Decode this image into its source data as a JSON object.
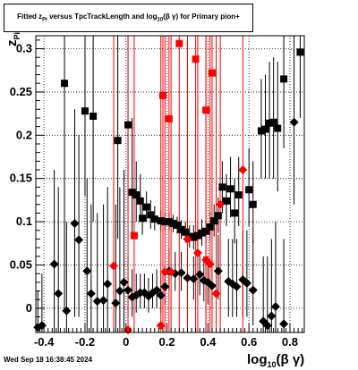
{
  "title": {
    "prefix": "Fitted  z",
    "sub1": "Pi",
    "mid": "  versus TpcTrackLength and log",
    "sub2": "10",
    "suffix": "(β γ) for Primary pion+"
  },
  "footer": "Wed Sep 18 16:38:45 2024",
  "xlabel": {
    "main": "log",
    "sub": "10",
    "rest": "(β γ)"
  },
  "ylabel": {
    "main": "z",
    "sub": "Pi"
  },
  "chart_data": {
    "type": "scatter",
    "xlim": [
      -0.44,
      0.87
    ],
    "ylim": [
      -0.028,
      0.315
    ],
    "grid": true,
    "xticks": [
      -0.4,
      -0.2,
      0,
      0.2,
      0.4,
      0.6,
      0.8
    ],
    "xtick_labels": [
      "-0.4",
      "-0.2",
      "0",
      "0.2",
      "0.4",
      "0.6",
      "0.8"
    ],
    "yticks": [
      0,
      0.05,
      0.1,
      0.15,
      0.2,
      0.25,
      0.3
    ],
    "ytick_labels": [
      "0",
      "0.05",
      "0.1",
      "0.15",
      "0.2",
      "0.25",
      "0.3"
    ],
    "series": [
      {
        "marker": "square",
        "color": "#000000",
        "points": [
          {
            "x": -0.3,
            "y": 0.26,
            "lo": 0.0,
            "hi": 0.315
          },
          {
            "x": -0.2,
            "y": 0.228,
            "lo": 0.13,
            "hi": 0.315
          },
          {
            "x": -0.16,
            "y": 0.222,
            "lo": 0.1,
            "hi": 0.315
          },
          {
            "x": -0.04,
            "y": 0.194,
            "lo": 0.08,
            "hi": 0.315
          },
          {
            "x": 0.01,
            "y": 0.212,
            "lo": 0.11,
            "hi": 0.315
          },
          {
            "x": 0.03,
            "y": 0.134,
            "lo": 0.08,
            "hi": 0.22
          },
          {
            "x": 0.05,
            "y": 0.131,
            "lo": 0.1,
            "hi": 0.17
          },
          {
            "x": 0.07,
            "y": 0.124,
            "lo": 0.1,
            "hi": 0.155
          },
          {
            "x": 0.08,
            "y": 0.104,
            "lo": 0.085,
            "hi": 0.125
          },
          {
            "x": 0.1,
            "y": 0.117,
            "lo": 0.1,
            "hi": 0.135
          },
          {
            "x": 0.12,
            "y": 0.108,
            "lo": 0.092,
            "hi": 0.125
          },
          {
            "x": 0.14,
            "y": 0.103,
            "lo": 0.09,
            "hi": 0.118
          },
          {
            "x": 0.17,
            "y": 0.101,
            "lo": 0.089,
            "hi": 0.113
          },
          {
            "x": 0.19,
            "y": 0.1,
            "lo": 0.09,
            "hi": 0.111
          },
          {
            "x": 0.21,
            "y": 0.1,
            "lo": 0.09,
            "hi": 0.11
          },
          {
            "x": 0.23,
            "y": 0.098,
            "lo": 0.088,
            "hi": 0.108
          },
          {
            "x": 0.25,
            "y": 0.096,
            "lo": 0.086,
            "hi": 0.106
          },
          {
            "x": 0.27,
            "y": 0.091,
            "lo": 0.08,
            "hi": 0.102
          },
          {
            "x": 0.29,
            "y": 0.088,
            "lo": 0.076,
            "hi": 0.1
          },
          {
            "x": 0.31,
            "y": 0.083,
            "lo": 0.07,
            "hi": 0.096
          },
          {
            "x": 0.33,
            "y": 0.082,
            "lo": 0.068,
            "hi": 0.096
          },
          {
            "x": 0.35,
            "y": 0.084,
            "lo": 0.07,
            "hi": 0.099
          },
          {
            "x": 0.37,
            "y": 0.087,
            "lo": 0.072,
            "hi": 0.103
          },
          {
            "x": 0.39,
            "y": 0.089,
            "lo": 0.074,
            "hi": 0.106
          },
          {
            "x": 0.41,
            "y": 0.094,
            "lo": 0.078,
            "hi": 0.112
          },
          {
            "x": 0.43,
            "y": 0.101,
            "lo": 0.083,
            "hi": 0.12
          },
          {
            "x": 0.45,
            "y": 0.107,
            "lo": 0.087,
            "hi": 0.128
          },
          {
            "x": 0.47,
            "y": 0.14,
            "lo": 0.11,
            "hi": 0.17
          },
          {
            "x": 0.49,
            "y": 0.124,
            "lo": 0.095,
            "hi": 0.155
          },
          {
            "x": 0.51,
            "y": 0.138,
            "lo": 0.105,
            "hi": 0.175
          },
          {
            "x": 0.53,
            "y": 0.11,
            "lo": 0.075,
            "hi": 0.15
          },
          {
            "x": 0.55,
            "y": 0.131,
            "lo": 0.095,
            "hi": 0.175
          },
          {
            "x": 0.6,
            "y": 0.137,
            "lo": 0.095,
            "hi": 0.185
          },
          {
            "x": 0.62,
            "y": 0.12,
            "lo": 0.075,
            "hi": 0.17
          },
          {
            "x": 0.66,
            "y": 0.205,
            "lo": 0.15,
            "hi": 0.265
          },
          {
            "x": 0.68,
            "y": 0.207,
            "lo": 0.15,
            "hi": 0.27
          },
          {
            "x": 0.7,
            "y": 0.214,
            "lo": 0.15,
            "hi": 0.285
          },
          {
            "x": 0.72,
            "y": 0.215,
            "lo": 0.15,
            "hi": 0.29
          },
          {
            "x": 0.74,
            "y": 0.208,
            "lo": 0.135,
            "hi": 0.285
          },
          {
            "x": 0.77,
            "y": 0.265,
            "lo": 0.185,
            "hi": 0.315
          },
          {
            "x": 0.85,
            "y": 0.296,
            "lo": 0.22,
            "hi": 0.315
          }
        ]
      },
      {
        "marker": "diamond",
        "color": "#000000",
        "points": [
          {
            "x": -0.43,
            "y": -0.022,
            "lo": -0.028,
            "hi": 0.02
          },
          {
            "x": -0.41,
            "y": -0.02,
            "lo": -0.028,
            "hi": 0.04
          },
          {
            "x": -0.35,
            "y": 0.051,
            "lo": -0.028,
            "hi": 0.16
          },
          {
            "x": -0.33,
            "y": 0.017,
            "lo": -0.028,
            "hi": 0.14
          },
          {
            "x": -0.29,
            "y": -0.003,
            "lo": -0.028,
            "hi": 0.1
          },
          {
            "x": -0.25,
            "y": 0.098,
            "lo": -0.01,
            "hi": 0.23
          },
          {
            "x": -0.23,
            "y": 0.079,
            "lo": -0.01,
            "hi": 0.2
          },
          {
            "x": -0.19,
            "y": 0.043,
            "lo": -0.028,
            "hi": 0.15
          },
          {
            "x": -0.17,
            "y": 0.017,
            "lo": -0.028,
            "hi": 0.12
          },
          {
            "x": -0.14,
            "y": 0.008,
            "lo": -0.028,
            "hi": 0.11
          },
          {
            "x": -0.11,
            "y": 0.009,
            "lo": -0.028,
            "hi": 0.12
          },
          {
            "x": -0.09,
            "y": 0.028,
            "lo": -0.028,
            "hi": 0.14
          },
          {
            "x": -0.05,
            "y": 0.006,
            "lo": -0.028,
            "hi": 0.12
          },
          {
            "x": -0.03,
            "y": 0.02,
            "lo": -0.028,
            "hi": 0.14
          },
          {
            "x": -0.01,
            "y": 0.03,
            "lo": -0.028,
            "hi": 0.16
          },
          {
            "x": 0.01,
            "y": 0.021,
            "lo": -0.01,
            "hi": 0.06
          },
          {
            "x": 0.03,
            "y": 0.013,
            "lo": -0.01,
            "hi": 0.045
          },
          {
            "x": 0.05,
            "y": 0.015,
            "lo": -0.005,
            "hi": 0.04
          },
          {
            "x": 0.07,
            "y": 0.018,
            "lo": 0.0,
            "hi": 0.04
          },
          {
            "x": 0.09,
            "y": 0.018,
            "lo": 0.0,
            "hi": 0.04
          },
          {
            "x": 0.11,
            "y": 0.014,
            "lo": -0.005,
            "hi": 0.035
          },
          {
            "x": 0.13,
            "y": 0.018,
            "lo": 0.0,
            "hi": 0.04
          },
          {
            "x": 0.15,
            "y": 0.021,
            "lo": 0.0,
            "hi": 0.045
          },
          {
            "x": 0.17,
            "y": 0.015,
            "lo": -0.005,
            "hi": 0.04
          },
          {
            "x": 0.19,
            "y": 0.025,
            "lo": 0.005,
            "hi": 0.05
          },
          {
            "x": 0.21,
            "y": 0.043,
            "lo": 0.02,
            "hi": 0.07
          },
          {
            "x": 0.24,
            "y": 0.04,
            "lo": 0.02,
            "hi": 0.065
          },
          {
            "x": 0.27,
            "y": 0.041,
            "lo": 0.02,
            "hi": 0.065
          },
          {
            "x": 0.3,
            "y": 0.035,
            "lo": 0.015,
            "hi": 0.06
          },
          {
            "x": 0.33,
            "y": 0.034,
            "lo": 0.01,
            "hi": 0.06
          },
          {
            "x": 0.36,
            "y": 0.039,
            "lo": 0.015,
            "hi": 0.065
          },
          {
            "x": 0.38,
            "y": 0.032,
            "lo": 0.008,
            "hi": 0.06
          },
          {
            "x": 0.4,
            "y": 0.03,
            "lo": 0.005,
            "hi": 0.06
          },
          {
            "x": 0.42,
            "y": 0.026,
            "lo": 0.0,
            "hi": 0.06
          },
          {
            "x": 0.45,
            "y": 0.043,
            "lo": 0.01,
            "hi": 0.085
          },
          {
            "x": 0.5,
            "y": 0.031,
            "lo": -0.01,
            "hi": 0.08
          },
          {
            "x": 0.52,
            "y": 0.028,
            "lo": -0.01,
            "hi": 0.08
          },
          {
            "x": 0.54,
            "y": 0.025,
            "lo": -0.01,
            "hi": 0.08
          },
          {
            "x": 0.57,
            "y": 0.033,
            "lo": -0.01,
            "hi": 0.09
          },
          {
            "x": 0.59,
            "y": 0.029,
            "lo": -0.01,
            "hi": 0.09
          },
          {
            "x": 0.62,
            "y": 0.021,
            "lo": -0.02,
            "hi": 0.08
          },
          {
            "x": 0.67,
            "y": -0.015,
            "lo": -0.028,
            "hi": 0.06
          },
          {
            "x": 0.69,
            "y": -0.02,
            "lo": -0.028,
            "hi": 0.06
          },
          {
            "x": 0.71,
            "y": -0.009,
            "lo": -0.028,
            "hi": 0.08
          },
          {
            "x": 0.73,
            "y": 0.002,
            "lo": -0.028,
            "hi": 0.1
          },
          {
            "x": 0.77,
            "y": -0.018,
            "lo": -0.028,
            "hi": 0.08
          },
          {
            "x": 0.82,
            "y": 0.215,
            "lo": 0.12,
            "hi": 0.315
          }
        ]
      },
      {
        "marker": "square",
        "color": "#ff0000",
        "points": [
          {
            "x": 0.04,
            "y": 0.084,
            "lo": -0.028,
            "hi": 0.315
          },
          {
            "x": 0.18,
            "y": 0.246,
            "lo": -0.028,
            "hi": 0.315
          },
          {
            "x": 0.21,
            "y": 0.219,
            "lo": -0.028,
            "hi": 0.315
          },
          {
            "x": 0.26,
            "y": 0.306,
            "lo": -0.028,
            "hi": 0.315
          },
          {
            "x": 0.34,
            "y": 0.288,
            "lo": -0.028,
            "hi": 0.315
          },
          {
            "x": 0.39,
            "y": 0.229,
            "lo": -0.028,
            "hi": 0.315
          },
          {
            "x": 0.42,
            "y": 0.272,
            "lo": -0.028,
            "hi": 0.315
          }
        ]
      },
      {
        "marker": "diamond",
        "color": "#ff0000",
        "points": [
          {
            "x": -0.06,
            "y": 0.049,
            "lo": -0.028,
            "hi": 0.315
          },
          {
            "x": 0.01,
            "y": -0.025,
            "lo": -0.028,
            "hi": 0.315
          },
          {
            "x": 0.17,
            "y": -0.02,
            "lo": -0.028,
            "hi": 0.315
          },
          {
            "x": 0.19,
            "y": 0.042,
            "lo": -0.028,
            "hi": 0.315
          },
          {
            "x": 0.22,
            "y": 0.042,
            "lo": -0.028,
            "hi": 0.315
          },
          {
            "x": 0.3,
            "y": 0.08,
            "lo": -0.028,
            "hi": 0.315
          },
          {
            "x": 0.35,
            "y": 0.064,
            "lo": -0.028,
            "hi": 0.315
          },
          {
            "x": 0.39,
            "y": 0.056,
            "lo": -0.028,
            "hi": 0.315
          },
          {
            "x": 0.41,
            "y": 0.051,
            "lo": -0.028,
            "hi": 0.315
          },
          {
            "x": 0.44,
            "y": 0.017,
            "lo": -0.028,
            "hi": 0.315
          },
          {
            "x": 0.46,
            "y": 0.12,
            "lo": -0.028,
            "hi": 0.315
          },
          {
            "x": 0.57,
            "y": 0.16,
            "lo": -0.028,
            "hi": 0.315
          }
        ]
      }
    ]
  }
}
